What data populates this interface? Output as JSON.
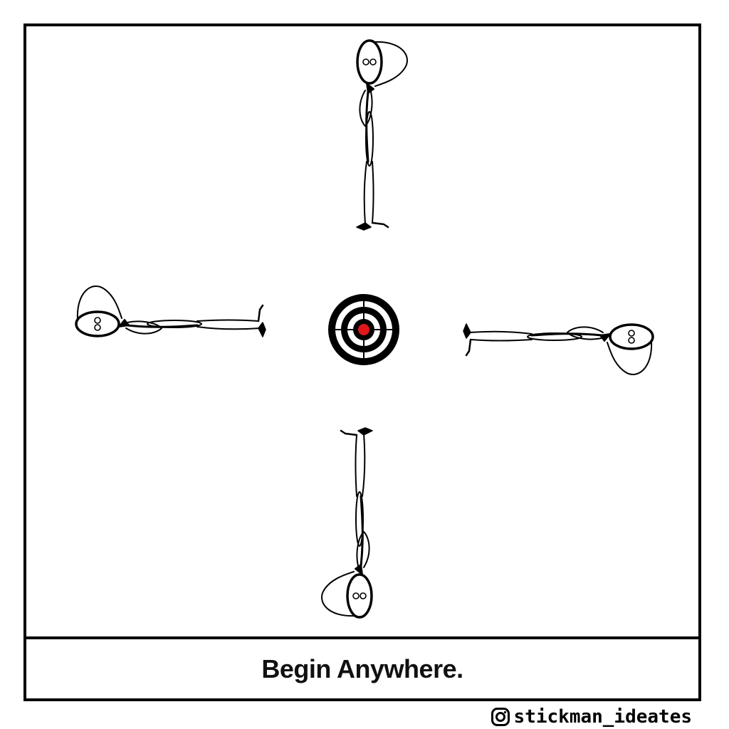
{
  "caption": "Begin Anywhere.",
  "watermark": {
    "icon": "instagram-icon",
    "handle": "stickman_ideates"
  },
  "colors": {
    "ink": "#000000",
    "target_center": "#e0161b",
    "background": "#ffffff"
  },
  "figures": [
    {
      "position": "top",
      "orientation": "upright"
    },
    {
      "position": "left",
      "orientation": "lying, head left"
    },
    {
      "position": "right",
      "orientation": "lying, head right"
    },
    {
      "position": "bottom",
      "orientation": "upside down"
    }
  ]
}
